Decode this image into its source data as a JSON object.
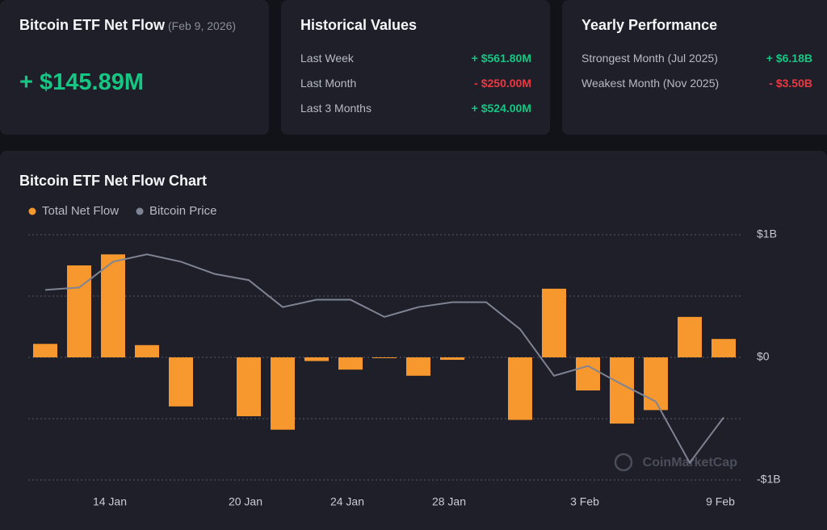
{
  "cards": [
    {
      "title": "Bitcoin ETF Net Flow",
      "date": "(Feb 9, 2026)",
      "value": "+ $145.89M",
      "color": "#16c784"
    },
    {
      "title": "Historical Values",
      "rows": [
        {
          "label": "Last Week",
          "value": "+ $561.80M",
          "color": "#16c784"
        },
        {
          "label": "Last Month",
          "value": "- $250.00M",
          "color": "#ea3943"
        },
        {
          "label": "Last 3 Months",
          "value": "+ $524.00M",
          "color": "#16c784"
        }
      ]
    },
    {
      "title": "Yearly Performance",
      "rows": [
        {
          "label": "Strongest Month (Jul 2025)",
          "value": "+ $6.18B",
          "color": "#16c784"
        },
        {
          "label": "Weakest Month (Nov 2025)",
          "value": "- $3.50B",
          "color": "#ea3943"
        }
      ]
    }
  ],
  "chart_data": {
    "type": "bar",
    "title": "Bitcoin ETF Net Flow Chart",
    "watermark": "CoinMarketCap",
    "categories": [
      null,
      null,
      "14 Jan",
      null,
      null,
      null,
      "20 Jan",
      null,
      null,
      "24 Jan",
      null,
      null,
      "28 Jan",
      null,
      null,
      null,
      "3 Feb",
      null,
      null,
      null,
      "9 Feb"
    ],
    "series": [
      {
        "name": "Total Net Flow",
        "type": "bar",
        "color": "#f7982f",
        "values": [
          0.11,
          0.75,
          0.84,
          0.1,
          -0.4,
          null,
          -0.48,
          -0.59,
          -0.03,
          -0.1,
          -0.005,
          -0.15,
          -0.02,
          null,
          -0.51,
          0.56,
          -0.27,
          -0.54,
          -0.43,
          0.33,
          0.15
        ]
      },
      {
        "name": "Bitcoin Price",
        "type": "line",
        "color": "#7e8494",
        "values": [
          0.55,
          0.57,
          0.78,
          0.84,
          0.78,
          0.68,
          0.63,
          0.41,
          0.47,
          0.47,
          0.33,
          0.41,
          0.45,
          0.45,
          0.23,
          -0.15,
          -0.07,
          -0.22,
          -0.36,
          -0.86,
          -0.49
        ]
      }
    ],
    "ylim": [
      -1,
      1
    ],
    "yticks": [
      {
        "value": 1,
        "label": "$1B"
      },
      {
        "value": 0,
        "label": "$0"
      },
      {
        "value": -1,
        "label": "-$1B"
      }
    ],
    "minor_gridlines": [
      0.5,
      -0.5
    ],
    "grid": true,
    "legend": "top-left"
  }
}
